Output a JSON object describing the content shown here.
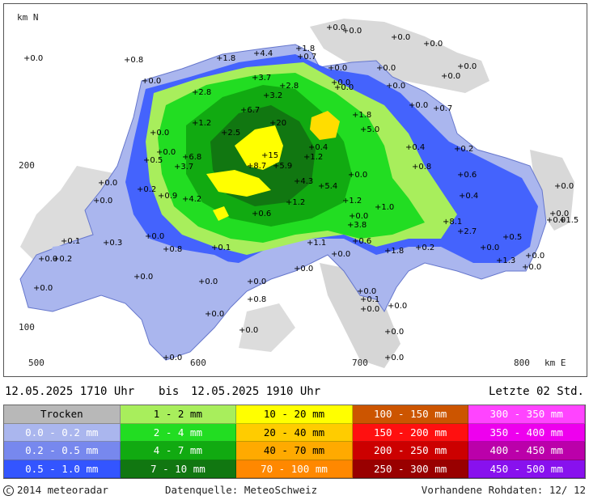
{
  "map": {
    "axis_north_label": "km N",
    "axis_east_label": "km E",
    "y_tick_200": "200",
    "y_tick_100": "100",
    "x_tick_500": "500",
    "x_tick_600": "600",
    "x_tick_700": "700",
    "x_tick_800": "800",
    "stations": [
      "0.0",
      "0.0",
      "0.0",
      "0.0",
      "1.8",
      "0.7",
      "4.4",
      "1.8",
      "0.0",
      "0.0",
      "0.0",
      "0.0",
      "0.0",
      "3.7",
      "2.8",
      "3.2",
      "0.0",
      "0.0",
      "2.8",
      "6.7",
      "1.2",
      "2.5",
      "20",
      "1.8",
      "5.0",
      "0.0",
      "0.0",
      "0.7",
      "0.0",
      "0.4",
      "0.5",
      "0.0",
      "15",
      "1.2",
      "0.4",
      "1.2",
      "0.8",
      "0.2",
      "0.6",
      "6.8",
      "3.7",
      "8.7",
      "5.9",
      "0.0",
      "0.0",
      "0.0",
      "0.2",
      "0.9",
      "4.2",
      "4.3",
      "5.4",
      "1.2",
      "0.4",
      "0.0",
      "0.0",
      "0.0",
      "0.0",
      "1.0",
      "3.8",
      "0.6",
      "8.1",
      "2.7",
      "0.5",
      "1.5",
      "0.1",
      "0.0",
      "0.3",
      "0.0",
      "0.0",
      "0.6",
      "0.2",
      "1.8",
      "0.8",
      "0.1",
      "1.1",
      "0.2",
      "0.0",
      "0.0",
      "0.0",
      "0.0",
      "0.0",
      "1.3",
      "0.0",
      "0.0",
      "0.0",
      "0.1",
      "0.0",
      "0.0",
      "0.8",
      "0.0",
      "0.0",
      "0.0",
      "0.0",
      "0.0",
      "0.0",
      "0.8",
      "0.0"
    ]
  },
  "header": {
    "time_from": "12.05.2025 1710 Uhr",
    "bis": "bis",
    "time_to": "12.05.2025 1910 Uhr",
    "period": "Letzte 02 Std."
  },
  "legend": {
    "rows": [
      [
        {
          "label": "Trocken",
          "color": "#b8b8b8"
        },
        {
          "label": "1 - 2 mm",
          "color": "#a8ee5c"
        },
        {
          "label": "10 - 20 mm",
          "color": "#ffff00"
        },
        {
          "label": "100 - 150 mm",
          "color": "#cc5500"
        },
        {
          "label": "300 - 350 mm",
          "color": "#ff44ff"
        }
      ],
      [
        {
          "label": "0.0 - 0.2 mm",
          "color": "#aab6ee"
        },
        {
          "label": "2 - 4 mm",
          "color": "#22dd22"
        },
        {
          "label": "20 - 40 mm",
          "color": "#ffcc00"
        },
        {
          "label": "150 - 200 mm",
          "color": "#ff1010"
        },
        {
          "label": "350 - 400 mm",
          "color": "#ee00ee"
        }
      ],
      [
        {
          "label": "0.2 - 0.5 mm",
          "color": "#7788ee"
        },
        {
          "label": "4 - 7 mm",
          "color": "#11aa11"
        },
        {
          "label": "40 - 70 mm",
          "color": "#ffaa00"
        },
        {
          "label": "200 - 250 mm",
          "color": "#cc0000"
        },
        {
          "label": "400 - 450 mm",
          "color": "#bb00aa"
        }
      ],
      [
        {
          "label": "0.5 - 1.0 mm",
          "color": "#3355ff"
        },
        {
          "label": "7 - 10 mm",
          "color": "#117711"
        },
        {
          "label": "70 - 100 mm",
          "color": "#ff8800"
        },
        {
          "label": "250 - 300 mm",
          "color": "#990000"
        },
        {
          "label": "450 - 500 mm",
          "color": "#8811ee"
        }
      ]
    ]
  },
  "footer": {
    "copyright": "2014 meteoradar",
    "source": "Datenquelle: MeteoSchweiz",
    "raw_data": "Vorhandene Rohdaten: 12/ 12"
  }
}
